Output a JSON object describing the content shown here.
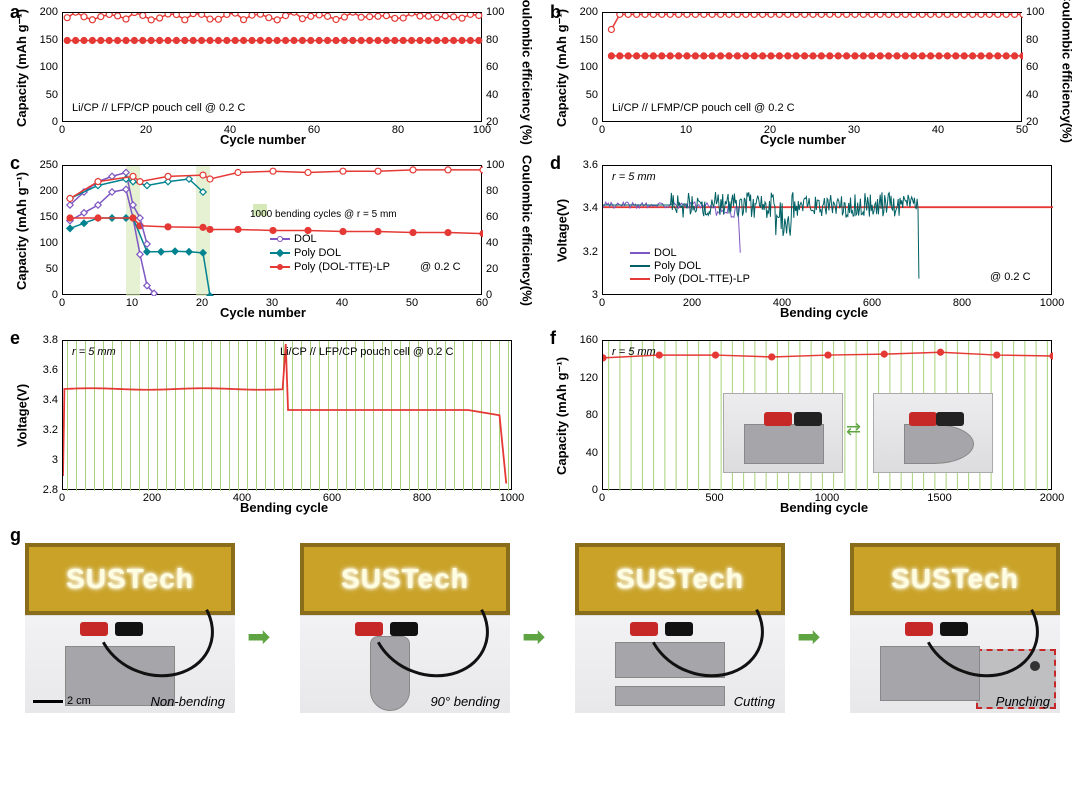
{
  "colors": {
    "red": "#e53935",
    "red_fill": "#ef5350",
    "teal": "#00838f",
    "teal_dark": "#006064",
    "purple": "#7e57c2",
    "green_band": "#d5e8b8",
    "green_stripe": "#a7d27a",
    "black": "#000000",
    "grid": "#e0e0e0"
  },
  "panel_a": {
    "label": "a",
    "xlabel": "Cycle number",
    "ylabel_left": "Capacity (mAh g⁻¹)",
    "ylabel_right": "Coulombic efficiency (%)",
    "xlim": [
      0,
      100
    ],
    "xticks": [
      0,
      20,
      40,
      60,
      80,
      100
    ],
    "ylim_left": [
      0,
      200
    ],
    "yticks_left": [
      0,
      50,
      100,
      150,
      200
    ],
    "ylim_right": [
      20,
      100
    ],
    "yticks_right": [
      20,
      40,
      60,
      80,
      100
    ],
    "annotation": "Li/CP // LFP/CP pouch cell @ 0.2 C",
    "capacity_value": 150,
    "ce_mean": 98,
    "ce_jitter": 4
  },
  "panel_b": {
    "label": "b",
    "xlabel": "Cycle number",
    "ylabel_left": "Capacity (mAh g⁻¹)",
    "ylabel_right": "Coulombic efficiency(%)",
    "xlim": [
      0,
      50
    ],
    "xticks": [
      0,
      10,
      20,
      30,
      40,
      50
    ],
    "ylim_left": [
      0,
      200
    ],
    "yticks_left": [
      0,
      50,
      100,
      150,
      200
    ],
    "ylim_right": [
      20,
      100
    ],
    "yticks_right": [
      20,
      40,
      60,
      80,
      100
    ],
    "annotation": "Li/CP // LFMP/CP pouch cell @ 0.2 C",
    "capacity_value": 122,
    "ce_first": 88,
    "ce_rest": 99
  },
  "panel_c": {
    "label": "c",
    "xlabel": "Cycle number",
    "ylabel_left": "Capacity (mAh g⁻¹)",
    "ylabel_right": "Coulombic efficiency(%)",
    "xlim": [
      0,
      60
    ],
    "xticks": [
      0,
      10,
      20,
      30,
      40,
      50,
      60
    ],
    "ylim_left": [
      0,
      250
    ],
    "yticks_left": [
      0,
      50,
      100,
      150,
      200,
      250
    ],
    "ylim_right": [
      0,
      100
    ],
    "yticks_right": [
      0,
      20,
      40,
      60,
      80,
      100
    ],
    "rate_anno": "@ 0.2 C",
    "band_anno": "1000 bending cycles @ r = 5 mm",
    "band_positions": [
      10,
      20
    ],
    "band_width": 2,
    "legend": [
      "DOL",
      "Poly DOL",
      "Poly (DOL-TTE)-LP"
    ],
    "series": {
      "dol_cap": {
        "x": [
          1,
          3,
          5,
          7,
          9,
          10,
          11,
          12,
          13
        ],
        "y": [
          145,
          160,
          175,
          200,
          205,
          150,
          80,
          20,
          5
        ],
        "color": "#7e57c2",
        "marker": "diamond",
        "fill": "open"
      },
      "polydol_cap": {
        "x": [
          1,
          3,
          5,
          7,
          9,
          10,
          12,
          14,
          16,
          18,
          20,
          21
        ],
        "y": [
          130,
          140,
          150,
          150,
          150,
          150,
          85,
          85,
          86,
          85,
          83,
          0
        ],
        "color": "#00838f",
        "marker": "diamond",
        "fill": "solid"
      },
      "polyltte_cap": {
        "x": [
          1,
          5,
          10,
          11,
          15,
          20,
          21,
          25,
          30,
          35,
          40,
          45,
          50,
          55,
          60
        ],
        "y": [
          150,
          150,
          150,
          135,
          133,
          132,
          128,
          128,
          126,
          126,
          124,
          124,
          122,
          122,
          120
        ],
        "color": "#e53935",
        "marker": "circle",
        "fill": "solid"
      },
      "dol_ce": {
        "x": [
          1,
          3,
          5,
          7,
          9,
          10,
          11,
          12
        ],
        "y": [
          70,
          80,
          88,
          92,
          95,
          70,
          60,
          40
        ],
        "color": "#7e57c2",
        "marker": "diamond_open"
      },
      "polydol_ce": {
        "x": [
          1,
          5,
          9,
          10,
          12,
          15,
          18,
          20
        ],
        "y": [
          75,
          85,
          90,
          88,
          85,
          88,
          90,
          80
        ],
        "color": "#00838f",
        "marker": "diamond_open"
      },
      "polyltte_ce": {
        "x": [
          1,
          5,
          10,
          11,
          15,
          20,
          21,
          25,
          30,
          35,
          40,
          45,
          50,
          55,
          60
        ],
        "y": [
          75,
          88,
          92,
          88,
          92,
          93,
          90,
          95,
          96,
          95,
          96,
          96,
          97,
          97,
          97
        ],
        "color": "#e53935",
        "marker": "circle_open"
      }
    }
  },
  "panel_d": {
    "label": "d",
    "xlabel": "Bending cycle",
    "ylabel": "Voltage(V)",
    "xlim": [
      0,
      1000
    ],
    "xticks": [
      0,
      200,
      400,
      600,
      800,
      1000
    ],
    "ylim": [
      3.0,
      3.6
    ],
    "yticks": [
      3.0,
      3.2,
      3.4,
      3.6
    ],
    "annotation": "r = 5 mm",
    "rate_anno": "@ 0.2 C",
    "legend": [
      "DOL",
      "Poly DOL",
      "Poly (DOL-TTE)-LP"
    ]
  },
  "panel_e": {
    "label": "e",
    "xlabel": "Bending cycle",
    "ylabel": "Voltage(V)",
    "xlim": [
      0,
      1000
    ],
    "xticks": [
      0,
      200,
      400,
      600,
      800,
      1000
    ],
    "ylim": [
      2.8,
      3.8
    ],
    "yticks": [
      2.8,
      3.0,
      3.2,
      3.4,
      3.6,
      3.8
    ],
    "annotation_left": "r = 5 mm",
    "annotation_right": "Li/CP // LFP/CP pouch cell @ 0.2 C",
    "stripe_count": 50
  },
  "panel_f": {
    "label": "f",
    "xlabel": "Bending cycle",
    "ylabel": "Capacity (mAh g⁻¹)",
    "xlim": [
      0,
      2000
    ],
    "xticks": [
      0,
      500,
      1000,
      1500,
      2000
    ],
    "ylim": [
      0,
      160
    ],
    "yticks": [
      0,
      40,
      80,
      120,
      160
    ],
    "annotation": "r = 5 mm",
    "stripe_count": 40,
    "data": {
      "x": [
        0,
        250,
        500,
        750,
        1000,
        1250,
        1500,
        1750,
        2000
      ],
      "y": [
        142,
        145,
        145,
        143,
        145,
        146,
        148,
        145,
        144
      ]
    }
  },
  "panel_g": {
    "label": "g",
    "led_text": "SUSTech",
    "scale": "2 cm",
    "captions": [
      "Non-bending",
      "90° bending",
      "Cutting",
      "Punching"
    ]
  }
}
